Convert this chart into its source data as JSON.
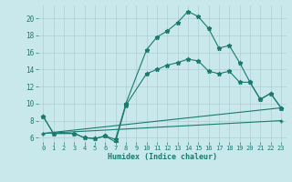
{
  "xlabel": "Humidex (Indice chaleur)",
  "xlim": [
    -0.5,
    23.5
  ],
  "ylim": [
    5.5,
    21.5
  ],
  "yticks": [
    6,
    8,
    10,
    12,
    14,
    16,
    18,
    20
  ],
  "xticks": [
    0,
    1,
    2,
    3,
    4,
    5,
    6,
    7,
    8,
    9,
    10,
    11,
    12,
    13,
    14,
    15,
    16,
    17,
    18,
    19,
    20,
    21,
    22,
    23
  ],
  "line_color": "#1a7a6e",
  "bg_color": "#c8e8ec",
  "grid_color": "#b0cdd4",
  "lines": [
    {
      "x": [
        0,
        1,
        3,
        4,
        5,
        6,
        7,
        8,
        10,
        11,
        12,
        13,
        14,
        15,
        16,
        17,
        18,
        19,
        20,
        21,
        22,
        23
      ],
      "y": [
        8.5,
        6.5,
        6.5,
        6.0,
        5.9,
        6.2,
        5.8,
        10.0,
        16.3,
        17.8,
        18.5,
        19.5,
        20.8,
        20.2,
        18.8,
        16.5,
        16.8,
        14.8,
        12.5,
        10.5,
        11.2,
        9.5
      ]
    },
    {
      "x": [
        0,
        1,
        3,
        4,
        5,
        6,
        7,
        8,
        10,
        11,
        12,
        13,
        14,
        15,
        16,
        17,
        18,
        19,
        20,
        21,
        22,
        23
      ],
      "y": [
        8.5,
        6.5,
        6.5,
        6.0,
        5.9,
        6.2,
        5.5,
        9.8,
        13.5,
        14.0,
        14.5,
        14.8,
        15.2,
        15.0,
        13.8,
        13.5,
        13.8,
        12.5,
        12.5,
        10.5,
        11.2,
        9.5
      ]
    },
    {
      "x": [
        0,
        23
      ],
      "y": [
        6.5,
        9.5
      ]
    },
    {
      "x": [
        0,
        23
      ],
      "y": [
        6.5,
        8.0
      ]
    }
  ]
}
